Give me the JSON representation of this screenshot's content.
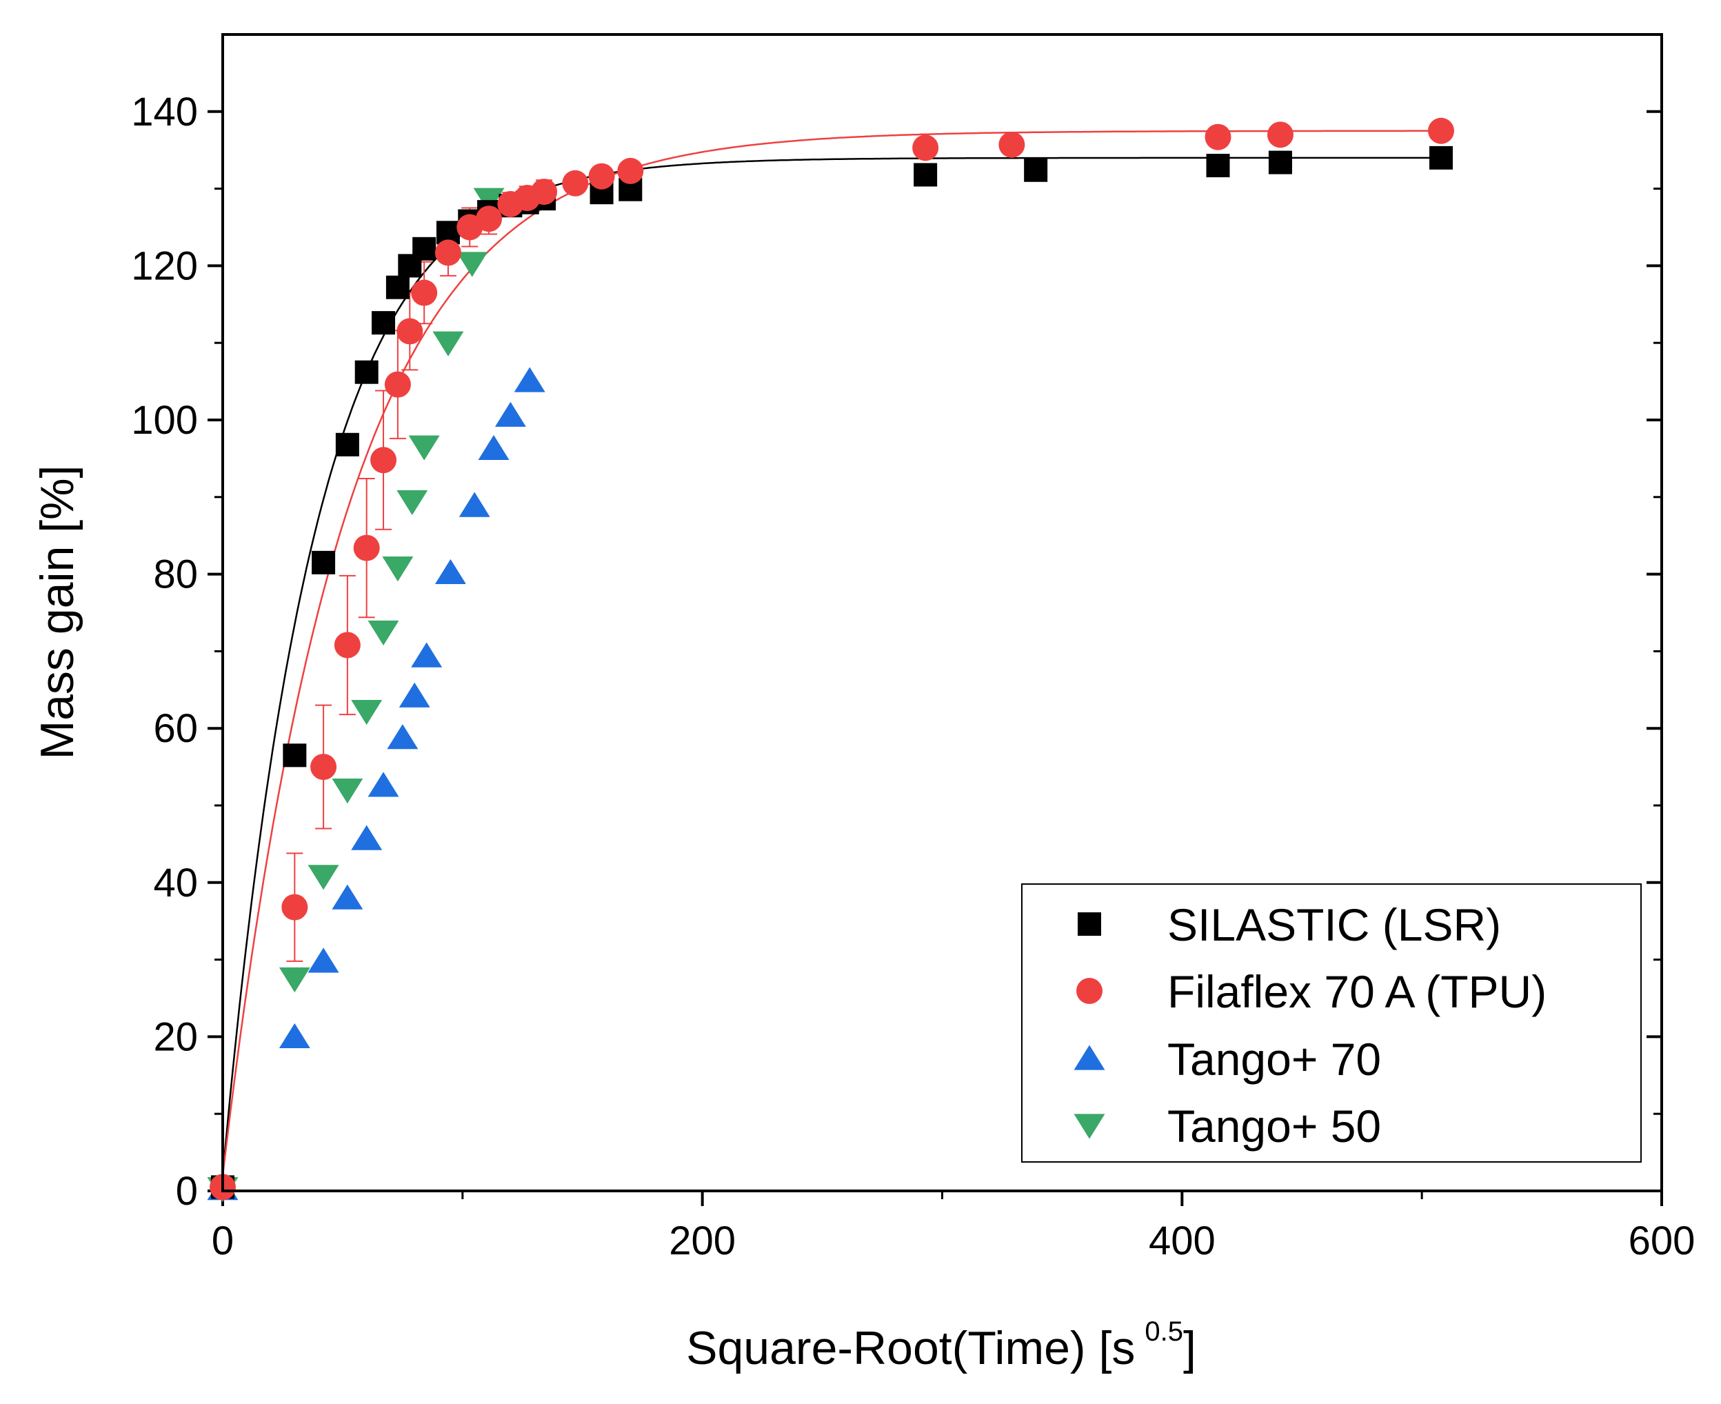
{
  "chart_data": {
    "type": "scatter",
    "title": "",
    "xlabel": "Square-Root(Time) [s",
    "xlabel_exponent": "0.5",
    "xlabel_suffix": "]",
    "ylabel": "Mass gain [%]",
    "xlim": [
      0,
      600
    ],
    "ylim": [
      0,
      150
    ],
    "xticks": [
      0,
      200,
      400,
      600
    ],
    "xtick_labels": [
      "0",
      "200",
      "400",
      "600"
    ],
    "yticks": [
      0,
      20,
      40,
      60,
      80,
      100,
      120,
      140
    ],
    "ytick_labels": [
      "0",
      "20",
      "40",
      "60",
      "80",
      "100",
      "120",
      "140"
    ],
    "legend_position": "bottom-right",
    "series": [
      {
        "name": "SILASTIC (LSR)",
        "marker": "square",
        "color": "#000000",
        "x": [
          0,
          30,
          42,
          52,
          60,
          67,
          73,
          78,
          84,
          94,
          103,
          111,
          120,
          127,
          134,
          158,
          170,
          293,
          339,
          415,
          441,
          508
        ],
        "y": [
          0.5,
          56.5,
          81.5,
          96.8,
          106.2,
          112.6,
          117.2,
          120.0,
          122.2,
          124.3,
          125.8,
          127.0,
          127.8,
          128.2,
          128.7,
          129.5,
          129.9,
          131.8,
          132.4,
          133.0,
          133.4,
          134.0
        ]
      },
      {
        "name": "Filaflex 70 A (TPU)",
        "marker": "circle",
        "color": "#ef4040",
        "x": [
          0,
          30,
          42,
          52,
          60,
          67,
          73,
          78,
          84,
          94,
          103,
          111,
          120,
          127,
          134,
          147,
          158,
          170,
          293,
          329,
          415,
          441,
          508
        ],
        "y": [
          0.5,
          36.8,
          55.0,
          70.8,
          83.4,
          94.8,
          104.6,
          111.5,
          116.5,
          121.7,
          125.0,
          126.1,
          128.0,
          128.8,
          129.6,
          130.7,
          131.6,
          132.3,
          135.3,
          135.7,
          136.7,
          137.0,
          137.5
        ],
        "y_err": [
          0,
          7,
          8,
          9,
          9,
          9,
          7,
          5,
          4,
          3,
          2.5,
          2,
          1.5,
          1.5,
          1.5,
          1,
          1,
          1,
          1,
          1,
          1,
          1,
          1
        ]
      },
      {
        "name": "Tango+ 70",
        "marker": "triangle-up",
        "color": "#1f6fe0",
        "x": [
          0,
          30,
          42,
          52,
          60,
          67,
          75,
          80,
          85,
          95,
          105,
          113,
          120,
          128
        ],
        "y": [
          0.3,
          20.0,
          29.8,
          38.0,
          45.7,
          52.6,
          58.8,
          64.2,
          69.4,
          80.2,
          88.9,
          96.3,
          100.6,
          105.1
        ]
      },
      {
        "name": "Tango+ 50",
        "marker": "triangle-down",
        "color": "#3aa866",
        "x": [
          0,
          30,
          42,
          52,
          60,
          67,
          73,
          79,
          84,
          94,
          104,
          111
        ],
        "y": [
          0.3,
          27.5,
          40.8,
          52.0,
          62.2,
          72.5,
          80.8,
          89.4,
          96.5,
          110.0,
          120.3,
          128.6
        ]
      }
    ],
    "fits": [
      {
        "name": "SILASTIC (LSR) fit",
        "color": "#000000",
        "y0": 2,
        "asymptote": 134,
        "rate": 0.026
      },
      {
        "name": "Filaflex 70 A (TPU) fit",
        "color": "#ef4040",
        "y0": 2,
        "asymptote": 137.5,
        "rate": 0.0195
      }
    ]
  }
}
